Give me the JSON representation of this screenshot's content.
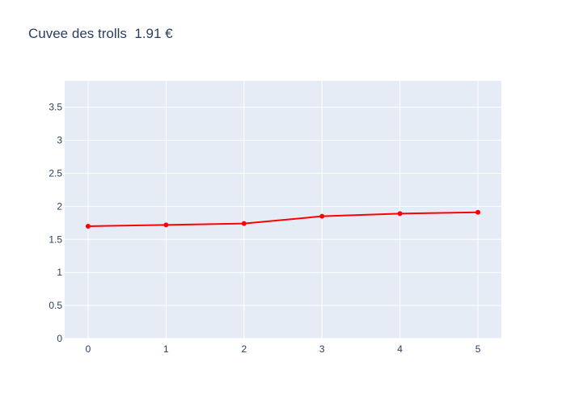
{
  "chart_data": {
    "type": "line",
    "title": "Cuvee des trolls  1.91 €",
    "xlabel": "",
    "ylabel": "",
    "x": [
      0,
      1,
      2,
      3,
      4,
      5
    ],
    "series": [
      {
        "values": [
          1.7,
          1.72,
          1.74,
          1.85,
          1.89,
          1.91
        ],
        "color": "#ff0000"
      }
    ],
    "xlim": [
      -0.3,
      5.3
    ],
    "ylim": [
      0,
      3.9
    ],
    "x_ticks": [
      "0",
      "1",
      "2",
      "3",
      "4",
      "5"
    ],
    "y_ticks": [
      "0",
      "0.5",
      "1",
      "1.5",
      "2",
      "2.5",
      "3",
      "3.5"
    ],
    "grid": true,
    "legend": "none",
    "colors": {
      "plot_background": "#e5ecf6",
      "grid": "#ffffff",
      "text": "#2a3f5f",
      "line": "#ff0000"
    }
  }
}
